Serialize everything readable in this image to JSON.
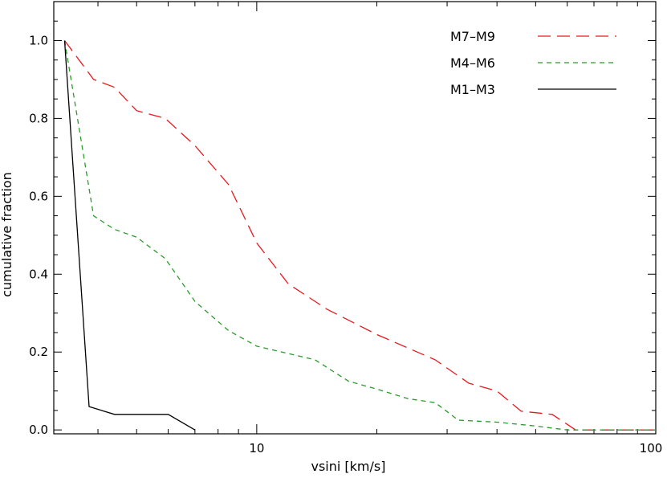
{
  "chart_data": {
    "type": "line",
    "title": "",
    "xlabel": "vsini [km/s]",
    "ylabel": "cumulative fraction",
    "xscale": "log",
    "xlim": [
      3.1,
      100
    ],
    "ylim": [
      -0.01,
      1.1
    ],
    "xticks": [
      10,
      100
    ],
    "xtick_labels": [
      "10",
      "100"
    ],
    "yticks": [
      0.0,
      0.2,
      0.4,
      0.6,
      0.8,
      1.0
    ],
    "ytick_labels": [
      "0.0",
      "0.2",
      "0.4",
      "0.6",
      "0.8",
      "1.0"
    ],
    "grid": false,
    "legend_position": "top-right",
    "series": [
      {
        "name": "M7–M9",
        "color": "#e8191e",
        "line_style": "long-dash",
        "x": [
          3.3,
          3.9,
          4.4,
          5.0,
          5.9,
          7.0,
          8.5,
          10.0,
          12.0,
          15.0,
          20.0,
          28.0,
          34.0,
          40.0,
          46.0,
          55.0,
          63.0,
          75.0,
          100.0
        ],
        "y": [
          1.0,
          0.9,
          0.88,
          0.82,
          0.8,
          0.73,
          0.63,
          0.48,
          0.375,
          0.31,
          0.245,
          0.18,
          0.12,
          0.1,
          0.048,
          0.04,
          0.0,
          0.0,
          0.0
        ]
      },
      {
        "name": "M4–M6",
        "color": "#2a9b2a",
        "line_style": "short-dash",
        "x": [
          3.3,
          3.9,
          4.4,
          5.0,
          5.9,
          7.0,
          8.5,
          10.0,
          14.0,
          17.0,
          20.0,
          24.0,
          28.0,
          32.0,
          40.0,
          50.0,
          60.0,
          75.0,
          100.0
        ],
        "y": [
          1.0,
          0.55,
          0.515,
          0.495,
          0.44,
          0.33,
          0.255,
          0.215,
          0.18,
          0.125,
          0.105,
          0.08,
          0.07,
          0.025,
          0.02,
          0.01,
          0.0,
          0.0,
          0.0
        ]
      },
      {
        "name": "M1–M3",
        "color": "#000000",
        "line_style": "solid",
        "x": [
          3.3,
          3.8,
          4.4,
          5.3,
          6.0,
          7.0
        ],
        "y": [
          1.0,
          0.06,
          0.04,
          0.04,
          0.04,
          0.0
        ]
      }
    ]
  }
}
